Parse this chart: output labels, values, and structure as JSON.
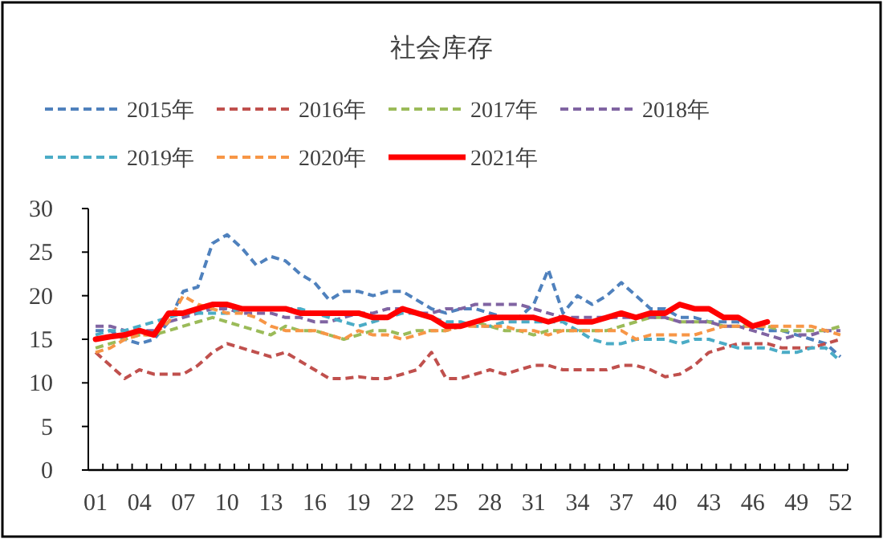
{
  "chart_data": {
    "type": "line",
    "title": "社会库存",
    "categories": [
      "01",
      null,
      null,
      "04",
      null,
      null,
      "07",
      null,
      null,
      "10",
      null,
      null,
      "13",
      null,
      null,
      "16",
      null,
      null,
      "19",
      null,
      null,
      "22",
      null,
      null,
      "25",
      null,
      null,
      "28",
      null,
      null,
      "31",
      null,
      null,
      "34",
      null,
      null,
      "37",
      null,
      null,
      "40",
      null,
      null,
      "43",
      null,
      null,
      "46",
      null,
      null,
      "49",
      null,
      null,
      "52"
    ],
    "ylim": [
      0,
      30
    ],
    "yticks": [
      0,
      5,
      10,
      15,
      20,
      25,
      30
    ],
    "grid": false,
    "legend": "top",
    "marker": "none",
    "series": [
      {
        "name": "2015年",
        "color": "#4f81bd",
        "line_style": "dashed",
        "values": [
          16,
          16,
          15,
          14.5,
          15,
          17,
          20.5,
          21,
          26,
          27,
          25.5,
          23.5,
          24.5,
          24,
          22.5,
          21.5,
          19.5,
          20.5,
          20.5,
          20,
          20.5,
          20.5,
          19.5,
          18.5,
          18,
          18.5,
          18.5,
          18,
          17.5,
          17.5,
          19,
          23,
          18,
          20,
          19,
          20,
          21.5,
          20,
          18.5,
          18.5,
          17.5,
          17.5,
          17,
          17,
          17,
          16.5,
          16,
          16,
          15.5,
          15,
          14.5,
          13
        ]
      },
      {
        "name": "2016年",
        "color": "#c0504d",
        "line_style": "dashed",
        "values": [
          13.5,
          12,
          10.5,
          11.5,
          11,
          11,
          11,
          12,
          13.5,
          14.5,
          14,
          13.5,
          13,
          13.5,
          12.5,
          11.5,
          10.5,
          10.5,
          10.7,
          10.5,
          10.5,
          11,
          11.5,
          13.5,
          10.5,
          10.5,
          11,
          11.5,
          11,
          11.5,
          12,
          12,
          11.5,
          11.5,
          11.5,
          11.5,
          12,
          12,
          11.5,
          10.7,
          11,
          12,
          13.5,
          14,
          14.5,
          14.5,
          14.5,
          14,
          14,
          14,
          14.5,
          15
        ]
      },
      {
        "name": "2017年",
        "color": "#9bbb59",
        "line_style": "dashed",
        "values": [
          14,
          14.5,
          15,
          15.5,
          15.5,
          16,
          16.5,
          17,
          17.5,
          17,
          16.5,
          16,
          15.5,
          16.5,
          16,
          16,
          15.5,
          15,
          15.5,
          16,
          16,
          15.5,
          16,
          16,
          16,
          16.5,
          17,
          16.5,
          16,
          16,
          15.5,
          16,
          16,
          16,
          16,
          16,
          16.5,
          17,
          17.5,
          17.5,
          17,
          17,
          17,
          16.5,
          16.5,
          16.5,
          16.5,
          16,
          16,
          16,
          16,
          16.5
        ]
      },
      {
        "name": "2018年",
        "color": "#8064a2",
        "line_style": "dashed",
        "values": [
          16.5,
          16.5,
          16,
          16,
          16,
          17,
          17.5,
          18,
          18.5,
          18.5,
          18,
          18,
          18,
          17.5,
          17.5,
          17,
          17,
          17.5,
          18,
          18,
          18.5,
          18.5,
          18,
          18,
          18.5,
          18.5,
          19,
          19,
          19,
          19,
          18.5,
          18,
          17.5,
          17.5,
          17.5,
          17.5,
          17.5,
          17.5,
          17.5,
          17.5,
          17,
          17,
          17,
          16.5,
          16.5,
          16,
          15.5,
          15,
          15.5,
          15.5,
          16,
          16
        ]
      },
      {
        "name": "2019年",
        "color": "#4bacc6",
        "line_style": "dashed",
        "values": [
          15.5,
          16,
          16,
          16.5,
          17,
          17.5,
          18,
          18,
          18,
          18,
          18.5,
          18.5,
          18.5,
          18.5,
          18.5,
          18,
          17.5,
          17,
          16.5,
          17,
          17.5,
          18,
          18,
          17.5,
          17,
          17,
          16.5,
          16.5,
          17,
          17,
          17,
          17,
          17,
          16,
          15,
          14.5,
          14.5,
          15,
          15,
          15,
          14.5,
          15,
          15,
          14.5,
          14,
          14,
          14,
          13.5,
          13.5,
          14,
          14,
          12.5
        ]
      },
      {
        "name": "2020年",
        "color": "#f79646",
        "line_style": "dashed",
        "values": [
          13.5,
          14,
          15,
          15.5,
          15.5,
          17,
          20,
          19,
          18.5,
          18,
          18,
          17.5,
          16.5,
          16,
          16,
          16,
          15.5,
          15,
          16,
          15.5,
          15.5,
          15,
          15.5,
          16,
          16,
          16.5,
          16.5,
          16.5,
          16.5,
          16,
          16,
          15.5,
          16,
          16,
          16,
          16,
          16,
          15,
          15.5,
          15.5,
          15.5,
          15.5,
          16,
          16.5,
          16.5,
          16.5,
          16.5,
          16.5,
          16.5,
          16.5,
          16,
          15.5
        ]
      },
      {
        "name": "2021年",
        "color": "#ff0000",
        "line_style": "solid",
        "values": [
          15,
          15.3,
          15.5,
          16,
          15.5,
          18,
          18,
          18.5,
          19,
          19,
          18.5,
          18.5,
          18.5,
          18.5,
          18,
          18,
          18,
          18,
          18,
          17.5,
          17.5,
          18.5,
          18,
          17.5,
          16.5,
          16.5,
          17,
          17.5,
          17.5,
          17.5,
          17.5,
          17,
          17.5,
          17,
          17,
          17.5,
          18,
          17.5,
          18,
          18,
          19,
          18.5,
          18.5,
          17.5,
          17.5,
          16.5,
          17,
          null,
          null,
          null,
          null,
          null
        ]
      }
    ]
  }
}
